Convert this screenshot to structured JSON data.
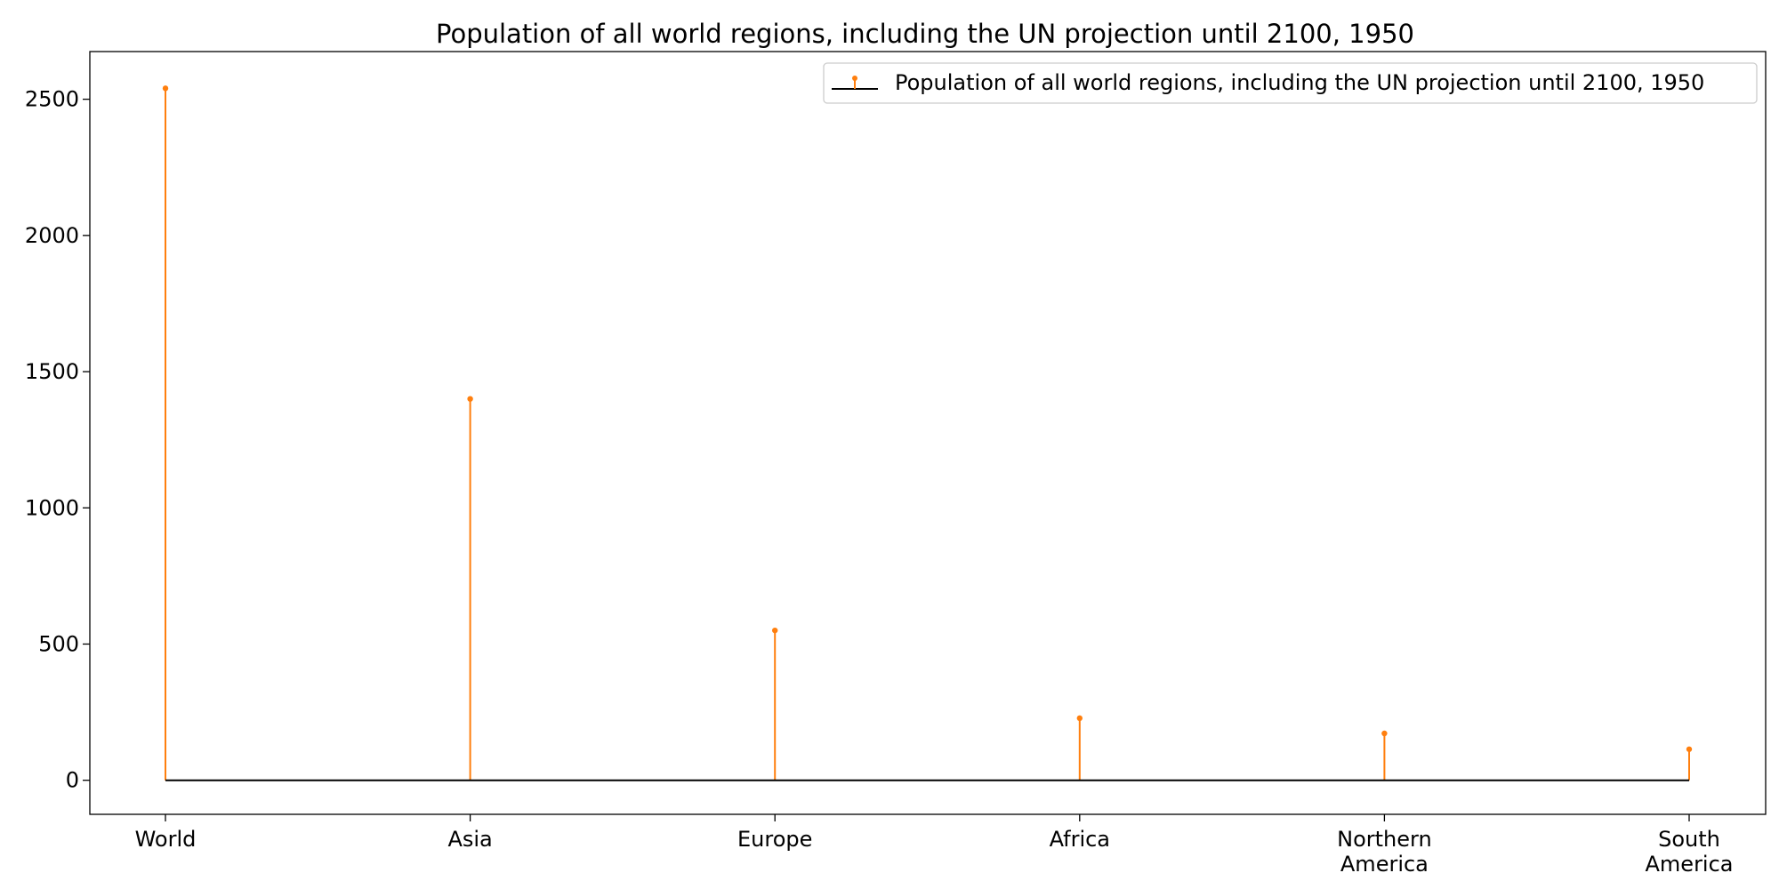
{
  "chart_data": {
    "type": "stem",
    "title": "Population of all world regions, including the UN projection until 2100, 1950",
    "xlabel": "",
    "ylabel": "",
    "categories": [
      [
        "World"
      ],
      [
        "Asia"
      ],
      [
        "Europe"
      ],
      [
        "Africa"
      ],
      [
        "Northern",
        "America"
      ],
      [
        "South",
        "America"
      ]
    ],
    "series": [
      {
        "name": "Population of all world regions, including the UN projection until 2100, 1950",
        "values": [
          2540,
          1400,
          550,
          228,
          172,
          114
        ]
      }
    ],
    "ylim": [
      -125,
      2675
    ],
    "yticks": [
      0,
      500,
      1000,
      1500,
      2000,
      2500
    ],
    "grid": false,
    "legend_position": "upper right",
    "colors": {
      "stem": "#ff7f0e",
      "baseline": "#000000",
      "frame": "#000000",
      "legend_border": "#cccccc"
    }
  }
}
